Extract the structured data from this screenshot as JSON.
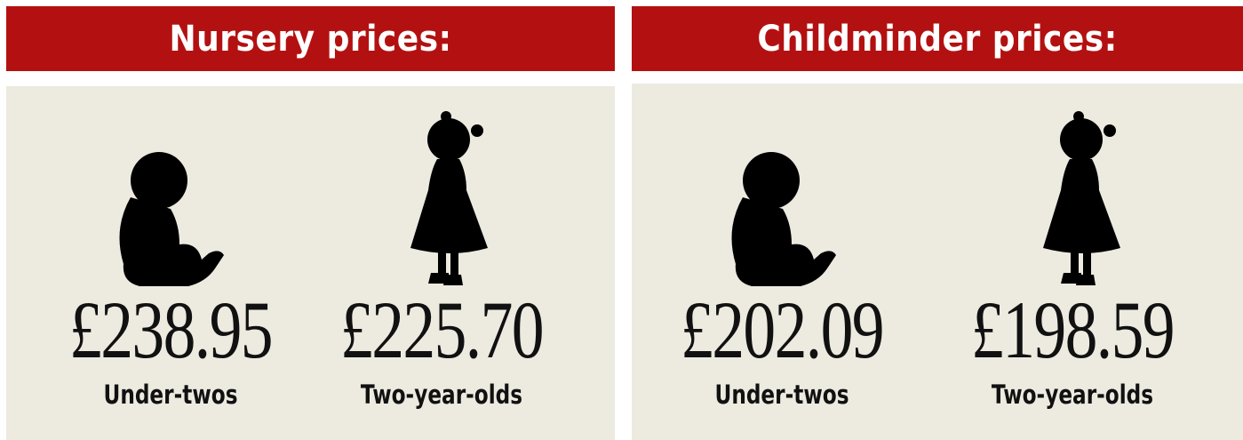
{
  "panels": [
    {
      "title": "Nursery prices:",
      "items": [
        {
          "price": "£238.95",
          "label": "Under-twos"
        },
        {
          "price": "£225.70",
          "label": "Two-year-olds"
        }
      ]
    },
    {
      "title": "Childminder prices:",
      "items": [
        {
          "price": "£202.09",
          "label": "Under-twos"
        },
        {
          "price": "£198.59",
          "label": "Two-year-olds"
        }
      ]
    }
  ]
}
